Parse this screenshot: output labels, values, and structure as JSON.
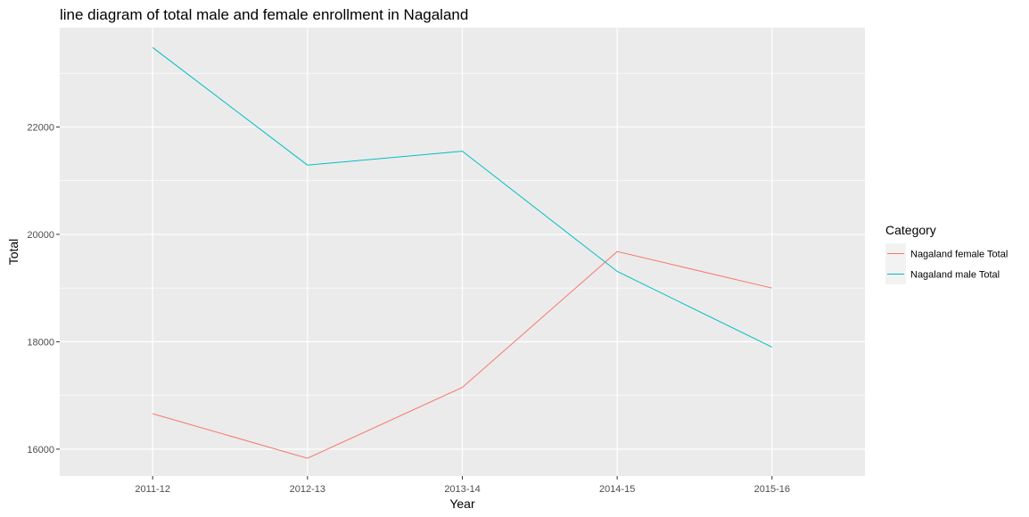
{
  "chart_data": {
    "type": "line",
    "title": "line diagram of total male and female enrollment in Nagaland",
    "xlabel": "Year",
    "ylabel": "Total",
    "categories": [
      "2011-12",
      "2012-13",
      "2013-14",
      "2014-15",
      "2015-16"
    ],
    "y_ticks": [
      16000,
      18000,
      20000,
      22000
    ],
    "ylim": [
      15500,
      23850
    ],
    "grid": true,
    "panel_background": "#ebebeb",
    "legend": {
      "title": "Category",
      "placement": "right"
    },
    "series": [
      {
        "name": "Nagaland female Total",
        "color": "#F8766D",
        "values": [
          16660,
          15830,
          17150,
          19680,
          19000
        ]
      },
      {
        "name": "Nagaland male Total",
        "color": "#00BFC4",
        "values": [
          23480,
          21290,
          21550,
          19310,
          17900
        ]
      }
    ]
  }
}
